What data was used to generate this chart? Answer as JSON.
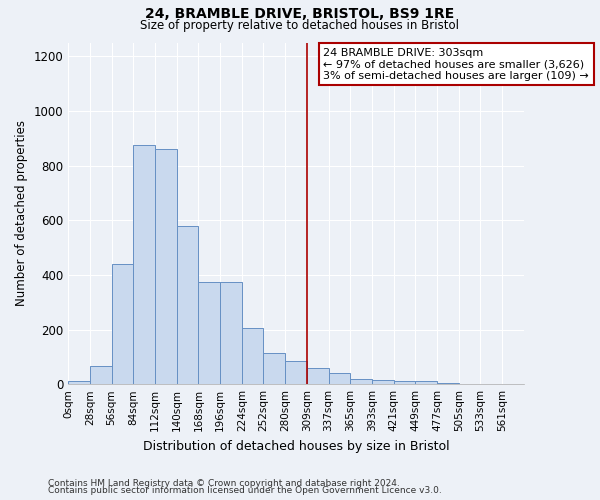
{
  "title1": "24, BRAMBLE DRIVE, BRISTOL, BS9 1RE",
  "title2": "Size of property relative to detached houses in Bristol",
  "xlabel": "Distribution of detached houses by size in Bristol",
  "ylabel": "Number of detached properties",
  "bin_labels": [
    "0sqm",
    "28sqm",
    "56sqm",
    "84sqm",
    "112sqm",
    "140sqm",
    "168sqm",
    "196sqm",
    "224sqm",
    "252sqm",
    "280sqm",
    "309sqm",
    "337sqm",
    "365sqm",
    "393sqm",
    "421sqm",
    "449sqm",
    "477sqm",
    "505sqm",
    "533sqm",
    "561sqm"
  ],
  "bar_values": [
    10,
    65,
    440,
    875,
    860,
    580,
    375,
    375,
    205,
    115,
    85,
    60,
    40,
    20,
    15,
    13,
    10,
    3,
    2,
    1,
    1
  ],
  "bar_color": "#c9d9ee",
  "bar_edge_color": "#6690c4",
  "vline_x_index": 11,
  "annotation_line1": "24 BRAMBLE DRIVE: 303sqm",
  "annotation_line2": "← 97% of detached houses are smaller (3,626)",
  "annotation_line3": "3% of semi-detached houses are larger (109) →",
  "annotation_box_facecolor": "#ffffff",
  "annotation_box_edgecolor": "#aa0000",
  "vline_color": "#aa0000",
  "ylim": [
    0,
    1250
  ],
  "yticks": [
    0,
    200,
    400,
    600,
    800,
    1000,
    1200
  ],
  "footer1": "Contains HM Land Registry data © Crown copyright and database right 2024.",
  "footer2": "Contains public sector information licensed under the Open Government Licence v3.0.",
  "bg_color": "#edf1f7",
  "grid_color": "#ffffff",
  "bin_width": 28
}
